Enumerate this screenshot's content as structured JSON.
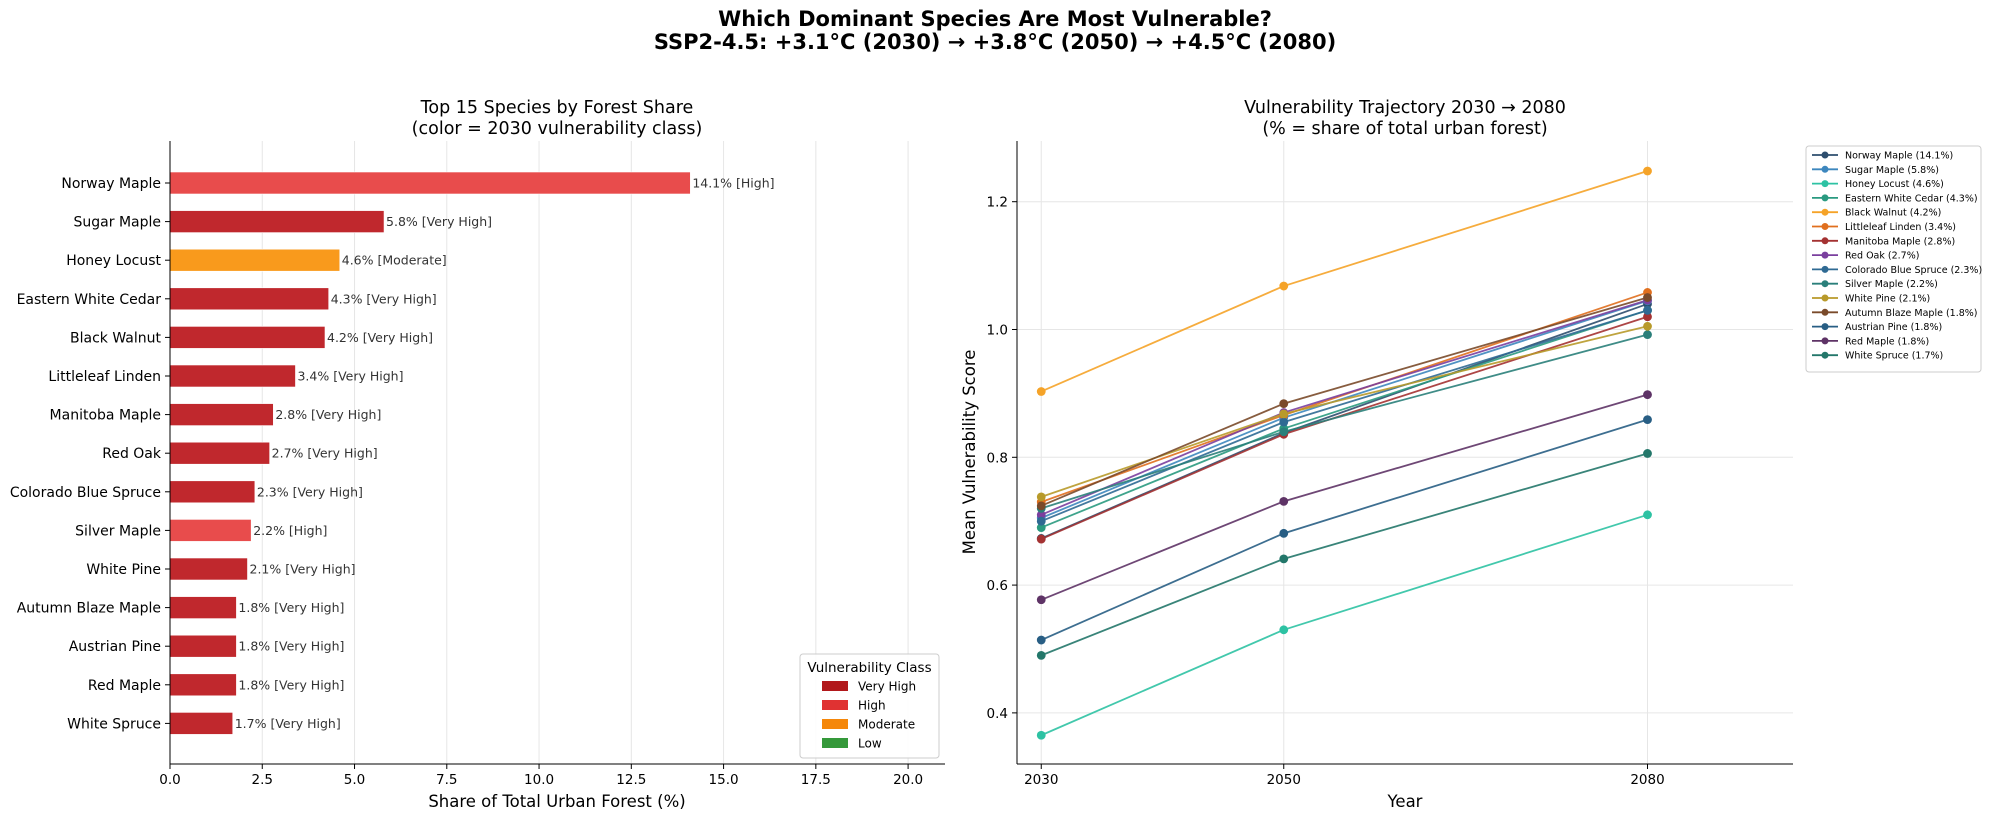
{
  "suptitle": {
    "line1": "Which Dominant Species Are Most Vulnerable?",
    "line2": "SSP2-4.5: +3.1°C (2030) → +3.8°C (2050) → +4.5°C (2080)"
  },
  "chart_data": [
    {
      "type": "bar",
      "orientation": "horizontal",
      "title": "Top 15 Species by Forest Share",
      "subtitle": "(color = 2030 vulnerability class)",
      "xlabel": "Share of Total Urban Forest (%)",
      "ylabel": "",
      "xlim": [
        0,
        21
      ],
      "xticks": [
        "0.0",
        "2.5",
        "5.0",
        "7.5",
        "10.0",
        "12.5",
        "15.0",
        "17.5",
        "20.0"
      ],
      "xtick_values": [
        0,
        2.5,
        5,
        7.5,
        10,
        12.5,
        15,
        17.5,
        20
      ],
      "grid": "vertical",
      "categories": [
        "Norway Maple",
        "Sugar Maple",
        "Honey Locust",
        "Eastern White Cedar",
        "Black Walnut",
        "Littleleaf Linden",
        "Manitoba Maple",
        "Red Oak",
        "Colorado Blue Spruce",
        "Silver Maple",
        "White Pine",
        "Autumn Blaze Maple",
        "Austrian Pine",
        "Red Maple",
        "White Spruce"
      ],
      "values": [
        14.1,
        5.8,
        4.6,
        4.3,
        4.2,
        3.4,
        2.8,
        2.7,
        2.3,
        2.2,
        2.1,
        1.8,
        1.8,
        1.8,
        1.7
      ],
      "classes": [
        "High",
        "Very High",
        "Moderate",
        "Very High",
        "Very High",
        "Very High",
        "Very High",
        "Very High",
        "Very High",
        "High",
        "Very High",
        "Very High",
        "Very High",
        "Very High",
        "Very High"
      ],
      "bar_labels": [
        "14.1%  [High]",
        "5.8%  [Very High]",
        "4.6%  [Moderate]",
        "4.3%  [Very High]",
        "4.2%  [Very High]",
        "3.4%  [Very High]",
        "2.8%  [Very High]",
        "2.7%  [Very High]",
        "2.3%  [Very High]",
        "2.2%  [High]",
        "2.1%  [Very High]",
        "1.8%  [Very High]",
        "1.8%  [Very High]",
        "1.8%  [Very High]",
        "1.7%  [Very High]"
      ],
      "class_colors": {
        "Very High": "#c0282d",
        "High": "#e84c4c",
        "Moderate": "#f99a1c",
        "Low": "#3a9b3a"
      },
      "legend": {
        "title": "Vulnerability Class",
        "placement": "lower-right",
        "entries": [
          {
            "label": "Very High",
            "color": "#b2181b"
          },
          {
            "label": "High",
            "color": "#e03232"
          },
          {
            "label": "Moderate",
            "color": "#f5870a"
          },
          {
            "label": "Low",
            "color": "#35993a"
          }
        ]
      }
    },
    {
      "type": "line",
      "title": "Vulnerability Trajectory 2030 → 2080",
      "subtitle": "(% = share of total urban forest)",
      "xlabel": "Year",
      "ylabel": "Mean Vulnerability Score",
      "x": [
        2030,
        2050,
        2080
      ],
      "xticks": [
        "2030",
        "2050",
        "2080"
      ],
      "xlim": [
        2028,
        2092
      ],
      "ylim": [
        0.32,
        1.295
      ],
      "yticks": [
        "0.4",
        "0.6",
        "0.8",
        "1.0",
        "1.2"
      ],
      "ytick_values": [
        0.4,
        0.6,
        0.8,
        1.0,
        1.2
      ],
      "grid": true,
      "legend_placement": "outside-upper-right",
      "series": [
        {
          "name": "Norway Maple (14.1%)",
          "color": "#2d4e6e",
          "values": [
            0.673,
            0.838,
            1.04
          ]
        },
        {
          "name": "Sugar Maple (5.8%)",
          "color": "#3d87be",
          "values": [
            0.705,
            0.862,
            1.045
          ]
        },
        {
          "name": "Honey Locust (4.6%)",
          "color": "#2dc2a3",
          "values": [
            0.365,
            0.53,
            0.71
          ]
        },
        {
          "name": "Eastern White Cedar (4.3%)",
          "color": "#2a9a80",
          "values": [
            0.69,
            0.845,
            1.03
          ]
        },
        {
          "name": "Black Walnut (4.2%)",
          "color": "#f5a328",
          "values": [
            0.903,
            1.068,
            1.248
          ]
        },
        {
          "name": "Littleleaf Linden (3.4%)",
          "color": "#e06f1e",
          "values": [
            0.73,
            0.866,
            1.058
          ]
        },
        {
          "name": "Manitoba Maple (2.8%)",
          "color": "#a43232",
          "values": [
            0.672,
            0.836,
            1.02
          ]
        },
        {
          "name": "Red Oak (2.7%)",
          "color": "#7a3f9e",
          "values": [
            0.71,
            0.87,
            1.046
          ]
        },
        {
          "name": "Colorado Blue Spruce (2.3%)",
          "color": "#2f6a93",
          "values": [
            0.7,
            0.855,
            1.03
          ]
        },
        {
          "name": "Silver Maple (2.2%)",
          "color": "#2a7f7a",
          "values": [
            0.72,
            0.84,
            0.992
          ]
        },
        {
          "name": "White Pine (2.1%)",
          "color": "#b89a2a",
          "values": [
            0.738,
            0.868,
            1.005
          ]
        },
        {
          "name": "Autumn Blaze Maple (1.8%)",
          "color": "#7a4a2a",
          "values": [
            0.724,
            0.884,
            1.05
          ]
        },
        {
          "name": "Austrian Pine (1.8%)",
          "color": "#285e84",
          "values": [
            0.514,
            0.681,
            0.859
          ]
        },
        {
          "name": "Red Maple (1.8%)",
          "color": "#5e3366",
          "values": [
            0.577,
            0.731,
            0.898
          ]
        },
        {
          "name": "White Spruce (1.7%)",
          "color": "#23776a",
          "values": [
            0.49,
            0.641,
            0.806
          ]
        }
      ]
    }
  ]
}
